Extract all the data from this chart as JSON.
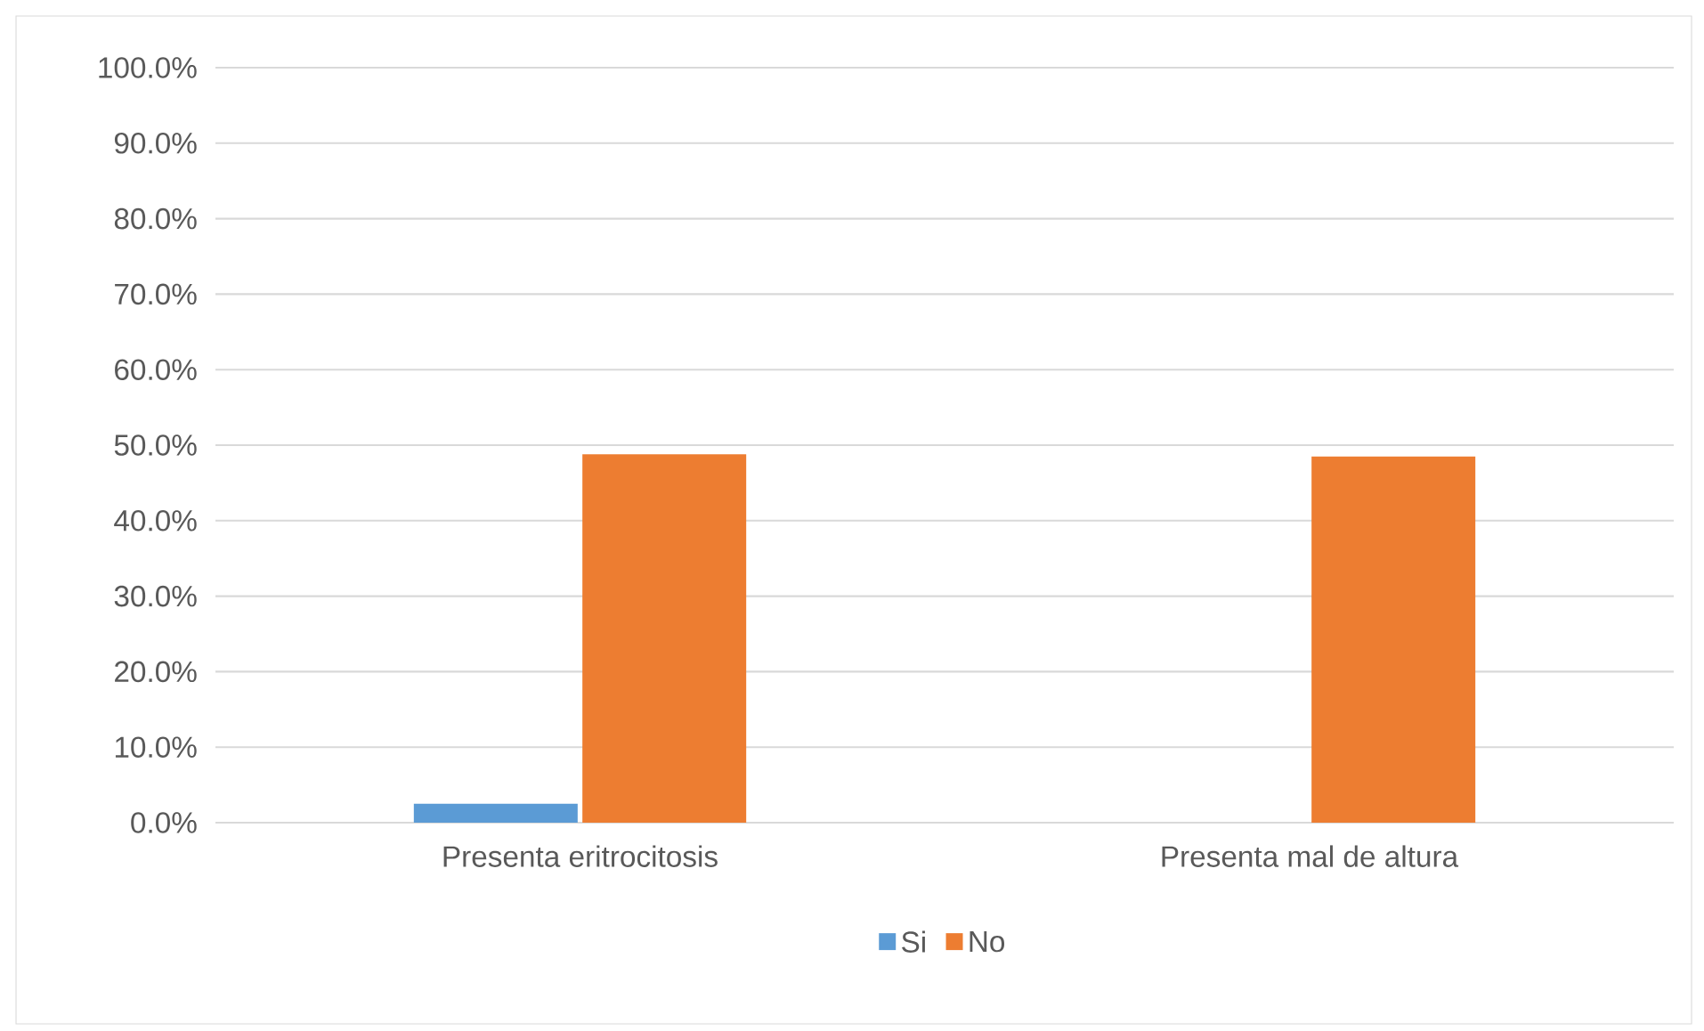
{
  "chart_data": {
    "type": "bar",
    "categories": [
      "Presenta eritrocitosis",
      "Presenta mal de altura"
    ],
    "series": [
      {
        "name": "Si",
        "color": "#5b9bd5",
        "values": [
          2.5,
          0
        ]
      },
      {
        "name": "No",
        "color": "#ed7d31",
        "values": [
          48.8,
          48.5
        ]
      }
    ],
    "ylim": [
      0,
      100
    ],
    "yticks": [
      {
        "value": 0,
        "label": "0.0%"
      },
      {
        "value": 10,
        "label": "10.0%"
      },
      {
        "value": 20,
        "label": "20.0%"
      },
      {
        "value": 30,
        "label": "30.0%"
      },
      {
        "value": 40,
        "label": "40.0%"
      },
      {
        "value": 50,
        "label": "50.0%"
      },
      {
        "value": 60,
        "label": "60.0%"
      },
      {
        "value": 70,
        "label": "70.0%"
      },
      {
        "value": 80,
        "label": "80.0%"
      },
      {
        "value": 90,
        "label": "90.0%"
      },
      {
        "value": 100,
        "label": "100.0%"
      }
    ],
    "grid": "y",
    "legend": "bottom"
  }
}
